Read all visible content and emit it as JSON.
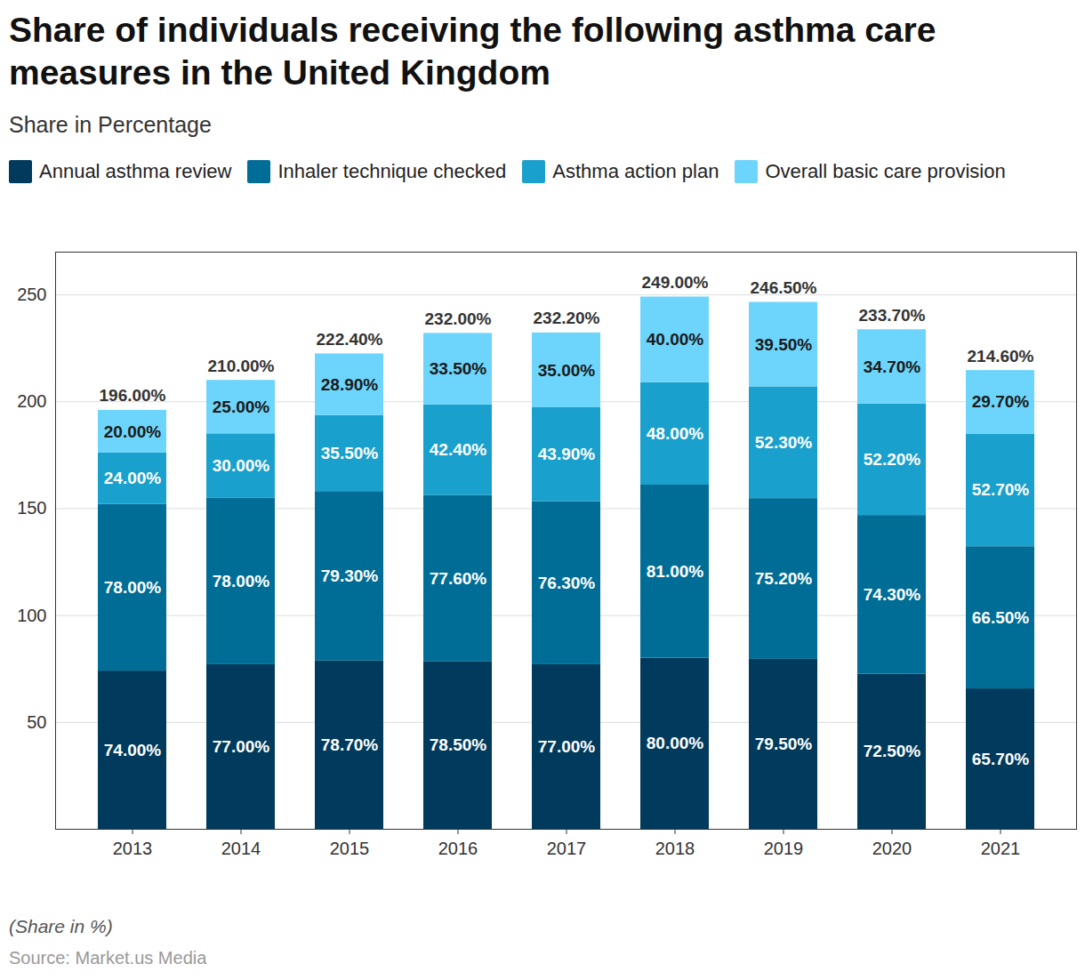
{
  "chart_data": {
    "type": "bar",
    "stacked": true,
    "data_labels": true,
    "grid": true,
    "legend": "top-left",
    "title": "Share of individuals receiving the following asthma care measures in the United Kingdom",
    "subtitle": "Share in Percentage",
    "caption": "(Share in %)",
    "source": "Source: Market.us Media",
    "categories": [
      "2013",
      "2014",
      "2015",
      "2016",
      "2017",
      "2018",
      "2019",
      "2020",
      "2021"
    ],
    "series": [
      {
        "name": "Annual asthma review",
        "color": "#003a5c",
        "values": [
          74,
          77,
          78.7,
          78.5,
          77,
          80,
          79.5,
          72.5,
          65.7
        ],
        "value_labels": [
          "74.00%",
          "77.00%",
          "78.70%",
          "78.50%",
          "77.00%",
          "80.00%",
          "79.50%",
          "72.50%",
          "65.70%"
        ]
      },
      {
        "name": "Inhaler technique checked",
        "color": "#006d96",
        "values": [
          78,
          78,
          79.3,
          77.6,
          76.3,
          81,
          75.2,
          74.3,
          66.5
        ],
        "value_labels": [
          "78.00%",
          "78.00%",
          "79.30%",
          "77.60%",
          "76.30%",
          "81.00%",
          "75.20%",
          "74.30%",
          "66.50%"
        ]
      },
      {
        "name": "Asthma action plan",
        "color": "#1aa0cc",
        "values": [
          24,
          30,
          35.5,
          42.4,
          43.9,
          48,
          52.3,
          52.2,
          52.7
        ],
        "value_labels": [
          "24.00%",
          "30.00%",
          "35.50%",
          "42.40%",
          "43.90%",
          "48.00%",
          "52.30%",
          "52.20%",
          "52.70%"
        ]
      },
      {
        "name": "Overall basic care provision",
        "color": "#6dd5fb",
        "values": [
          20,
          25,
          28.9,
          33.5,
          35,
          40,
          39.5,
          34.7,
          29.7
        ],
        "value_labels": [
          "20.00%",
          "25.00%",
          "28.90%",
          "33.50%",
          "35.00%",
          "40.00%",
          "39.50%",
          "34.70%",
          "29.70%"
        ]
      }
    ],
    "totals": {
      "values": [
        196,
        210,
        222.4,
        232,
        232.2,
        249,
        246.5,
        233.7,
        214.6
      ],
      "value_labels": [
        "196.00%",
        "210.00%",
        "222.40%",
        "232.00%",
        "232.20%",
        "249.00%",
        "246.50%",
        "233.70%",
        "214.60%"
      ]
    },
    "ylim": [
      0,
      270
    ],
    "yticks": [
      50,
      100,
      150,
      200,
      250
    ]
  }
}
